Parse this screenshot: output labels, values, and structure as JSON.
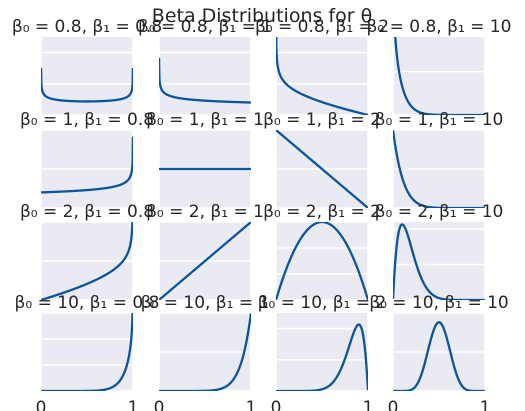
{
  "chart_data": {
    "type": "line",
    "title": "Beta Distributions for θ",
    "grid": true,
    "background_color": "#eaeaf2",
    "grid_color": "#ffffff",
    "line_color": "#0b55a0",
    "x_tick_labels": [
      "0",
      "1"
    ],
    "subplots": [
      {
        "title": "β₀ = 0.8, β₁ = 0.8",
        "beta0": 0.8,
        "beta1": 0.8,
        "xlim": [
          0,
          1
        ],
        "ylim": [
          0,
          5
        ]
      },
      {
        "title": "β₀ = 0.8, β₁ = 1",
        "beta0": 0.8,
        "beta1": 1,
        "xlim": [
          0,
          1
        ],
        "ylim": [
          0,
          5
        ]
      },
      {
        "title": "β₀ = 0.8, β₁ = 2",
        "beta0": 0.8,
        "beta1": 2,
        "xlim": [
          0,
          1
        ],
        "ylim": [
          0,
          5
        ]
      },
      {
        "title": "β₀ = 0.8, β₁ = 10",
        "beta0": 0.8,
        "beta1": 10,
        "xlim": [
          0,
          1
        ],
        "ylim": [
          0,
          9
        ]
      },
      {
        "title": "β₀ = 1, β₁ = 0.8",
        "beta0": 1,
        "beta1": 0.8,
        "xlim": [
          0,
          1
        ],
        "ylim": [
          0,
          4
        ]
      },
      {
        "title": "β₀ = 1, β₁ = 1",
        "beta0": 1,
        "beta1": 1,
        "xlim": [
          0,
          1
        ],
        "ylim": [
          0,
          2
        ]
      },
      {
        "title": "β₀ = 1, β₁ = 2",
        "beta0": 1,
        "beta1": 2,
        "xlim": [
          0,
          1
        ],
        "ylim": [
          0,
          2
        ]
      },
      {
        "title": "β₀ = 1, β₁ = 10",
        "beta0": 1,
        "beta1": 10,
        "xlim": [
          0,
          1
        ],
        "ylim": [
          0,
          10
        ]
      },
      {
        "title": "β₀ = 2, β₁ = 0.8",
        "beta0": 2,
        "beta1": 0.8,
        "xlim": [
          0,
          1
        ],
        "ylim": [
          0,
          4
        ]
      },
      {
        "title": "β₀ = 2, β₁ = 1",
        "beta0": 2,
        "beta1": 1,
        "xlim": [
          0,
          1
        ],
        "ylim": [
          0,
          2
        ]
      },
      {
        "title": "β₀ = 2, β₁ = 2",
        "beta0": 2,
        "beta1": 2,
        "xlim": [
          0,
          1
        ],
        "ylim": [
          0,
          1.5
        ]
      },
      {
        "title": "β₀ = 2, β₁ = 10",
        "beta0": 2,
        "beta1": 10,
        "xlim": [
          0,
          1
        ],
        "ylim": [
          0,
          4.4
        ]
      },
      {
        "title": "β₀ = 10, β₁ = 0.8",
        "beta0": 10,
        "beta1": 0.8,
        "xlim": [
          0,
          1
        ],
        "ylim": [
          0,
          15
        ]
      },
      {
        "title": "β₀ = 10, β₁ = 1",
        "beta0": 10,
        "beta1": 1,
        "xlim": [
          0,
          1
        ],
        "ylim": [
          0,
          10
        ]
      },
      {
        "title": "β₀ = 10, β₁ = 2",
        "beta0": 10,
        "beta1": 2,
        "xlim": [
          0,
          1
        ],
        "ylim": [
          0,
          5
        ]
      },
      {
        "title": "β₀ = 10, β₁ = 10",
        "beta0": 10,
        "beta1": 10,
        "xlim": [
          0,
          1
        ],
        "ylim": [
          0,
          4
        ]
      }
    ]
  }
}
